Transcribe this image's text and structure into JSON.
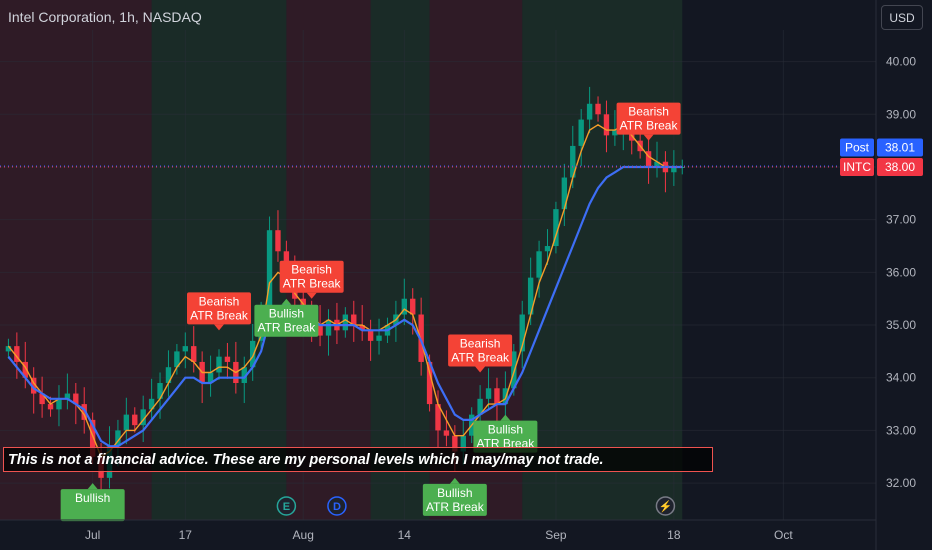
{
  "header": {
    "title": "Intel Corporation, 1h, NASDAQ",
    "currency_button": "USD"
  },
  "disclaimer": "This is not a financial advice. These are my personal levels which I may/may not trade.",
  "price_tags": {
    "post": {
      "label": "Post",
      "value": "38.01",
      "color": "#2962ff"
    },
    "last": {
      "label": "INTC",
      "value": "38.00",
      "color": "#f23645"
    }
  },
  "signals": [
    {
      "type": "bullish",
      "lines": [
        "Bullish",
        ""
      ],
      "t": 10,
      "color": "#4caf50"
    },
    {
      "type": "bearish",
      "lines": [
        "Bearish",
        "ATR Break"
      ],
      "t": 25,
      "color": "#f44336"
    },
    {
      "type": "bullish",
      "lines": [
        "Bullish",
        "ATR Break"
      ],
      "t": 33,
      "color": "#4caf50"
    },
    {
      "type": "bearish",
      "lines": [
        "Bearish",
        "ATR Break"
      ],
      "t": 36,
      "color": "#f44336"
    },
    {
      "type": "bearish",
      "lines": [
        "Bearish",
        "ATR Break"
      ],
      "t": 56,
      "color": "#f44336"
    },
    {
      "type": "bullish",
      "lines": [
        "Bullish",
        "ATR Break"
      ],
      "t": 53,
      "color": "#4caf50"
    },
    {
      "type": "bullish",
      "lines": [
        "Bullish",
        "ATR Break"
      ],
      "t": 59,
      "color": "#4caf50"
    },
    {
      "type": "bearish",
      "lines": [
        "Bearish",
        "ATR Break"
      ],
      "t": 76,
      "color": "#f44336"
    }
  ],
  "markers": [
    {
      "label": "E",
      "t": 33,
      "color": "#26a69a"
    },
    {
      "label": "D",
      "t": 39,
      "color": "#2962ff"
    },
    {
      "label": "⚡",
      "t": 78,
      "color": "#787b86"
    }
  ],
  "chart_data": {
    "type": "candlestick",
    "symbol": "INTC",
    "timeframe": "1h",
    "y_ticks": [
      "40.00",
      "39.00",
      "38.00",
      "37.00",
      "36.00",
      "35.00",
      "34.00",
      "33.00",
      "32.00"
    ],
    "ylim": [
      31.3,
      40.6
    ],
    "x_ticks": [
      {
        "label": "Jul",
        "t": 10
      },
      {
        "label": "17",
        "t": 21
      },
      {
        "label": "Aug",
        "t": 35
      },
      {
        "label": "14",
        "t": 47
      },
      {
        "label": "Sep",
        "t": 65
      },
      {
        "label": "18",
        "t": 79
      },
      {
        "label": "Oct",
        "t": 92
      }
    ],
    "xlim": [
      -1,
      103
    ],
    "last_data_t": 80,
    "regimes": [
      {
        "from": -1,
        "to": 17,
        "state": "bearish"
      },
      {
        "from": 17,
        "to": 33,
        "state": "bullish"
      },
      {
        "from": 33,
        "to": 43,
        "state": "bearish"
      },
      {
        "from": 43,
        "to": 50,
        "state": "bullish"
      },
      {
        "from": 50,
        "to": 61,
        "state": "bearish"
      },
      {
        "from": 61,
        "to": 80,
        "state": "bullish"
      }
    ],
    "close": [
      34.6,
      34.3,
      34.0,
      33.7,
      33.5,
      33.4,
      33.6,
      33.7,
      33.5,
      33.2,
      32.5,
      32.1,
      32.7,
      33.0,
      33.3,
      33.1,
      33.4,
      33.6,
      33.9,
      34.2,
      34.5,
      34.6,
      34.3,
      33.9,
      34.1,
      34.4,
      34.3,
      33.9,
      34.2,
      34.7,
      35.3,
      36.8,
      36.4,
      36.0,
      35.5,
      35.2,
      35.0,
      34.8,
      35.1,
      34.9,
      35.2,
      35.0,
      34.9,
      34.7,
      34.8,
      35.0,
      35.2,
      35.5,
      35.2,
      34.3,
      33.5,
      33.0,
      32.9,
      32.6,
      32.9,
      33.3,
      33.6,
      33.8,
      33.5,
      33.8,
      34.5,
      35.2,
      35.9,
      36.4,
      36.5,
      37.2,
      37.8,
      38.4,
      38.9,
      39.2,
      39.0,
      38.6,
      38.7,
      38.9,
      38.5,
      38.3,
      38.0,
      38.1,
      37.9,
      38.0,
      38.0
    ],
    "ema_fast": [
      34.6,
      34.4,
      34.2,
      33.9,
      33.7,
      33.5,
      33.6,
      33.6,
      33.5,
      33.3,
      32.9,
      32.5,
      32.6,
      32.8,
      33.0,
      33.0,
      33.2,
      33.4,
      33.6,
      33.9,
      34.2,
      34.4,
      34.3,
      34.1,
      34.1,
      34.2,
      34.2,
      34.1,
      34.2,
      34.4,
      34.8,
      35.8,
      36.0,
      35.9,
      35.6,
      35.4,
      35.2,
      35.0,
      35.1,
      35.0,
      35.1,
      35.0,
      35.0,
      34.9,
      34.9,
      35.0,
      35.1,
      35.3,
      35.2,
      34.7,
      34.1,
      33.5,
      33.2,
      32.9,
      32.9,
      33.1,
      33.3,
      33.5,
      33.5,
      33.6,
      34.1,
      34.6,
      35.2,
      35.8,
      36.2,
      36.7,
      37.2,
      37.8,
      38.3,
      38.7,
      38.8,
      38.7,
      38.7,
      38.8,
      38.6,
      38.4,
      38.2,
      38.1,
      38.0,
      38.0,
      38.0
    ],
    "ema_slow": [
      34.4,
      34.2,
      34.0,
      33.8,
      33.7,
      33.6,
      33.6,
      33.6,
      33.5,
      33.4,
      33.1,
      32.8,
      32.7,
      32.7,
      32.8,
      32.9,
      33.0,
      33.2,
      33.4,
      33.6,
      33.8,
      34.0,
      34.0,
      33.9,
      33.9,
      34.0,
      34.0,
      34.0,
      34.0,
      34.2,
      34.5,
      35.1,
      35.3,
      35.4,
      35.3,
      35.2,
      35.1,
      35.0,
      35.0,
      35.0,
      35.0,
      35.0,
      34.9,
      34.9,
      34.9,
      34.9,
      35.0,
      35.1,
      35.0,
      34.7,
      34.3,
      33.9,
      33.6,
      33.3,
      33.2,
      33.2,
      33.3,
      33.4,
      33.5,
      33.5,
      33.8,
      34.1,
      34.5,
      34.9,
      35.3,
      35.7,
      36.1,
      36.5,
      36.9,
      37.3,
      37.6,
      37.8,
      37.9,
      38.0,
      38.0,
      38.0,
      38.0,
      38.0,
      38.0,
      38.0,
      38.0
    ]
  }
}
